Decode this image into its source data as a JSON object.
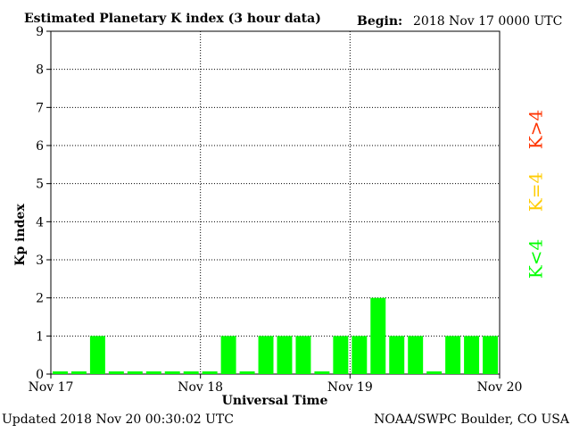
{
  "chart_data": {
    "type": "bar",
    "title": "Estimated Planetary K index (3 hour data)",
    "begin_label": "Begin:",
    "begin_value": "2018 Nov 17 0000 UTC",
    "ylabel": "Kp index",
    "xlabel": "Universal Time",
    "ylim": [
      0,
      9
    ],
    "y_ticks": [
      "0",
      "1",
      "2",
      "3",
      "4",
      "5",
      "6",
      "7",
      "8",
      "9"
    ],
    "x_ticks": [
      "Nov 17",
      "Nov 18",
      "Nov 19",
      "Nov 20"
    ],
    "grid": true,
    "values": [
      0,
      0,
      1,
      0,
      0,
      0,
      0,
      0,
      0,
      1,
      0,
      1,
      1,
      1,
      0,
      1,
      1,
      2,
      1,
      1,
      0,
      1,
      1,
      1
    ],
    "bar_colors": [
      "#00ff00",
      "#00ff00",
      "#00ff00",
      "#00ff00",
      "#00ff00",
      "#00ff00",
      "#00ff00",
      "#00ff00",
      "#00ff00",
      "#00ff00",
      "#00ff00",
      "#00ff00",
      "#00ff00",
      "#00ff00",
      "#00ff00",
      "#00ff00",
      "#00ff00",
      "#00ff00",
      "#00ff00",
      "#00ff00",
      "#00ff00",
      "#00ff00",
      "#00ff00",
      "#00ff00"
    ],
    "legend": [
      {
        "label": "K>4",
        "color": "#ff3300"
      },
      {
        "label": "K=4",
        "color": "#ffcc00"
      },
      {
        "label": "K<4",
        "color": "#00ff00"
      }
    ]
  },
  "footer": {
    "updated": "Updated 2018 Nov 20 00:30:02 UTC",
    "source": "NOAA/SWPC Boulder, CO USA"
  }
}
